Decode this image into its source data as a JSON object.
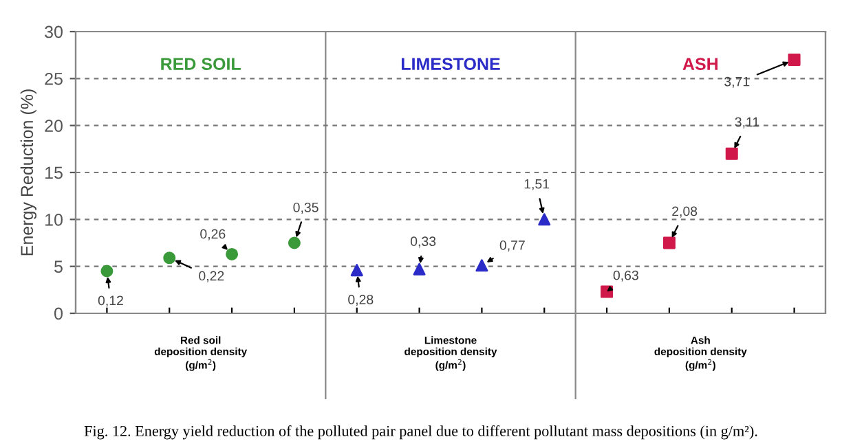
{
  "chart_data": {
    "type": "scatter",
    "ylabel": "Energy Reduction (%)",
    "categories": [
      null,
      null,
      null,
      null,
      null,
      null,
      null,
      null,
      null,
      null,
      null,
      null
    ],
    "series": [
      {
        "name": "RED SOIL",
        "color": "#3a9a3a",
        "marker": "circle",
        "values": [
          4.5,
          5.9,
          6.3,
          7.5,
          null,
          null,
          null,
          null,
          null,
          null,
          null,
          null
        ]
      },
      {
        "name": "LIMESTONE",
        "color": "#2b2bc8",
        "marker": "triangle",
        "values": [
          null,
          null,
          null,
          null,
          4.6,
          4.7,
          5.1,
          10.0,
          null,
          null,
          null,
          null
        ]
      },
      {
        "name": "ASH",
        "color": "#d0184a",
        "marker": "square",
        "values": [
          null,
          null,
          null,
          null,
          null,
          null,
          null,
          null,
          2.3,
          7.5,
          17.0,
          27.0
        ]
      }
    ],
    "ylim": [
      0,
      30
    ],
    "yticks": [
      0,
      5,
      10,
      15,
      20,
      25,
      30
    ],
    "grid": "y",
    "tick_labels": "y",
    "annotations": [
      "0,12",
      "0,22",
      "0,26",
      "0,35",
      "0,28",
      "0,33",
      "0,77",
      "1,51",
      "0,63",
      "2,08",
      "3,11",
      "3,71",
      "Red soil\ndeposition density\n(g/m$^{2}$)",
      "Limestone\ndeposition density\n(g/m$^{2}$)",
      "Ash\ndeposition density\n(g/m$^{2}$)",
      "Fig. 12. Energy yield reduction of the polluted pair panel due to different pollutant mass depositions (in g/m²)."
    ]
  }
}
